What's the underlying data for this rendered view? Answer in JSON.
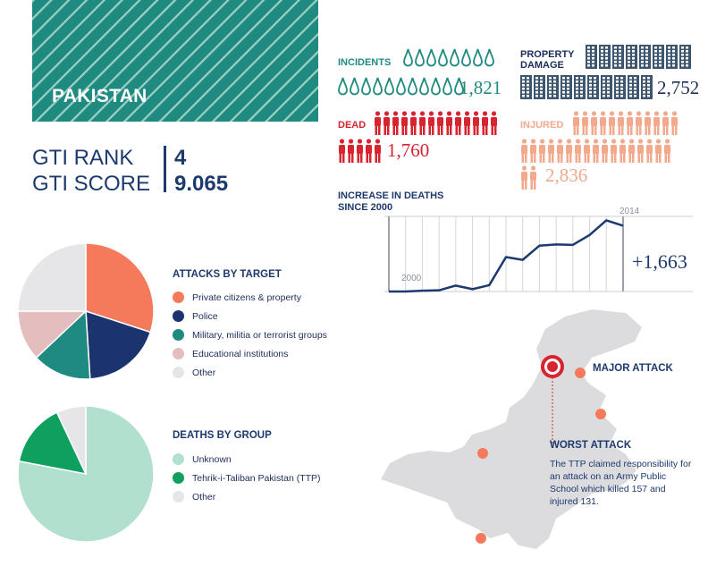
{
  "country": "PAKISTAN",
  "gti": {
    "rank_label": "GTI RANK",
    "rank": "4",
    "score_label": "GTI SCORE",
    "score": "9.065"
  },
  "stats": {
    "incidents": {
      "label": "INCIDENTS",
      "value": "1,821",
      "color": "#1f8a7f"
    },
    "property": {
      "label": "PROPERTY DAMAGE",
      "value": "2,752",
      "color": "#3d5670"
    },
    "dead": {
      "label": "DEAD",
      "value": "1,760",
      "color": "#d8242e"
    },
    "injured": {
      "label": "INJURED",
      "value": "2,836",
      "color": "#f2a98c"
    }
  },
  "attacks_by_target": {
    "title": "ATTACKS BY TARGET",
    "items": [
      {
        "label": "Private citizens & property",
        "color": "#f47a5b"
      },
      {
        "label": "Police",
        "color": "#1b3470"
      },
      {
        "label": "Military, militia or terrorist groups",
        "color": "#1f8a7f"
      },
      {
        "label": "Educational institutions",
        "color": "#e4bebf"
      },
      {
        "label": "Other",
        "color": "#e6e6e9"
      }
    ]
  },
  "deaths_by_group": {
    "title": "DEATHS BY GROUP",
    "items": [
      {
        "label": "Unknown",
        "color": "#b2e0cf"
      },
      {
        "label": "Tehrik-i-Taliban Pakistan (TTP)",
        "color": "#0fa060"
      },
      {
        "label": "Other",
        "color": "#e6e6e9"
      }
    ]
  },
  "chart_data": [
    {
      "type": "pie",
      "title": "ATTACKS BY TARGET",
      "labels": [
        "Private citizens & property",
        "Police",
        "Military, militia or terrorist groups",
        "Educational institutions",
        "Other"
      ],
      "values": [
        30,
        19,
        14,
        12,
        25
      ]
    },
    {
      "type": "pie",
      "title": "DEATHS BY GROUP",
      "labels": [
        "Unknown",
        "Tehrik-i-Taliban Pakistan (TTP)",
        "Other"
      ],
      "values": [
        78,
        15,
        7
      ]
    },
    {
      "type": "line",
      "title": "INCREASE IN DEATHS SINCE 2000",
      "x": [
        2000,
        2001,
        2002,
        2003,
        2004,
        2005,
        2006,
        2007,
        2008,
        2009,
        2010,
        2011,
        2012,
        2013,
        2014
      ],
      "values": [
        0,
        0,
        20,
        30,
        150,
        60,
        160,
        870,
        800,
        1160,
        1190,
        1180,
        1430,
        1800,
        1663
      ],
      "ylim": [
        0,
        1900
      ],
      "x_tick_labels": [
        "2000",
        "2014"
      ],
      "annotation": "+1,663"
    }
  ],
  "map": {
    "major_attack_label": "MAJOR ATTACK",
    "worst_attack_label": "WORST ATTACK",
    "worst_attack_text": "The TTP claimed responsibility for an attack on an Army Public School which killed 157 and injured 131."
  }
}
